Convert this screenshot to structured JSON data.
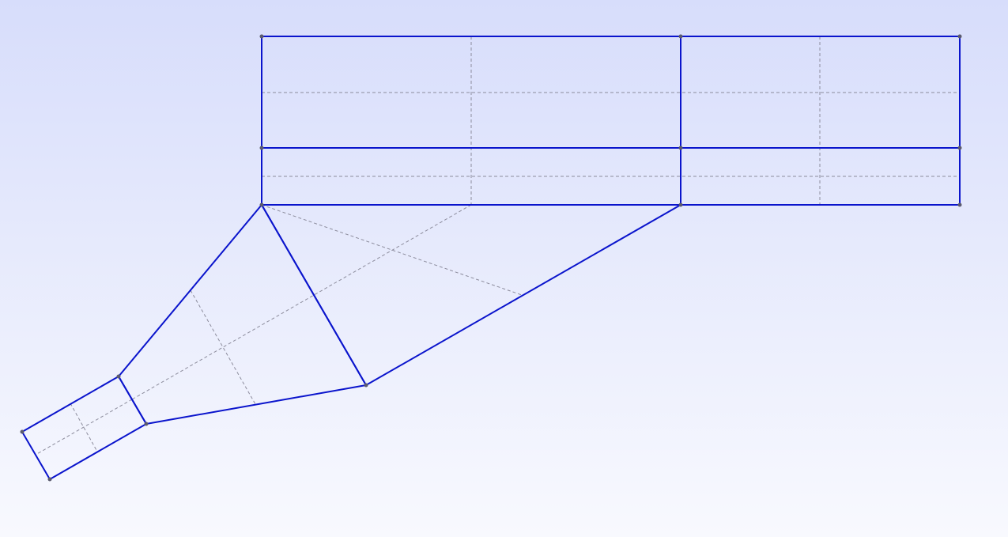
{
  "viewport": {
    "background_top": "#d7ddfb",
    "background_bottom": "#f8f9fe"
  },
  "colors": {
    "block_edge": "#0a14cc",
    "subdivision": "#8c8c9c",
    "vertex": "#5a5a6e"
  },
  "icons": {
    "vertex": "vertex-dot-icon"
  }
}
